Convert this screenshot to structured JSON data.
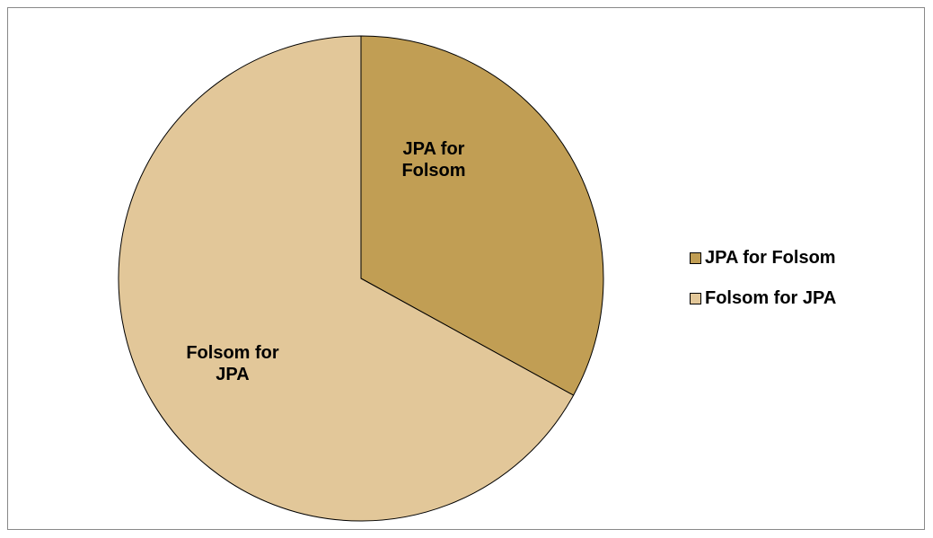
{
  "chart_data": {
    "type": "pie",
    "categories": [
      "JPA for Folsom",
      "Folsom for JPA"
    ],
    "values": [
      33,
      67
    ],
    "colors": [
      "#c19e54",
      "#e2c799"
    ],
    "legend": "right"
  }
}
